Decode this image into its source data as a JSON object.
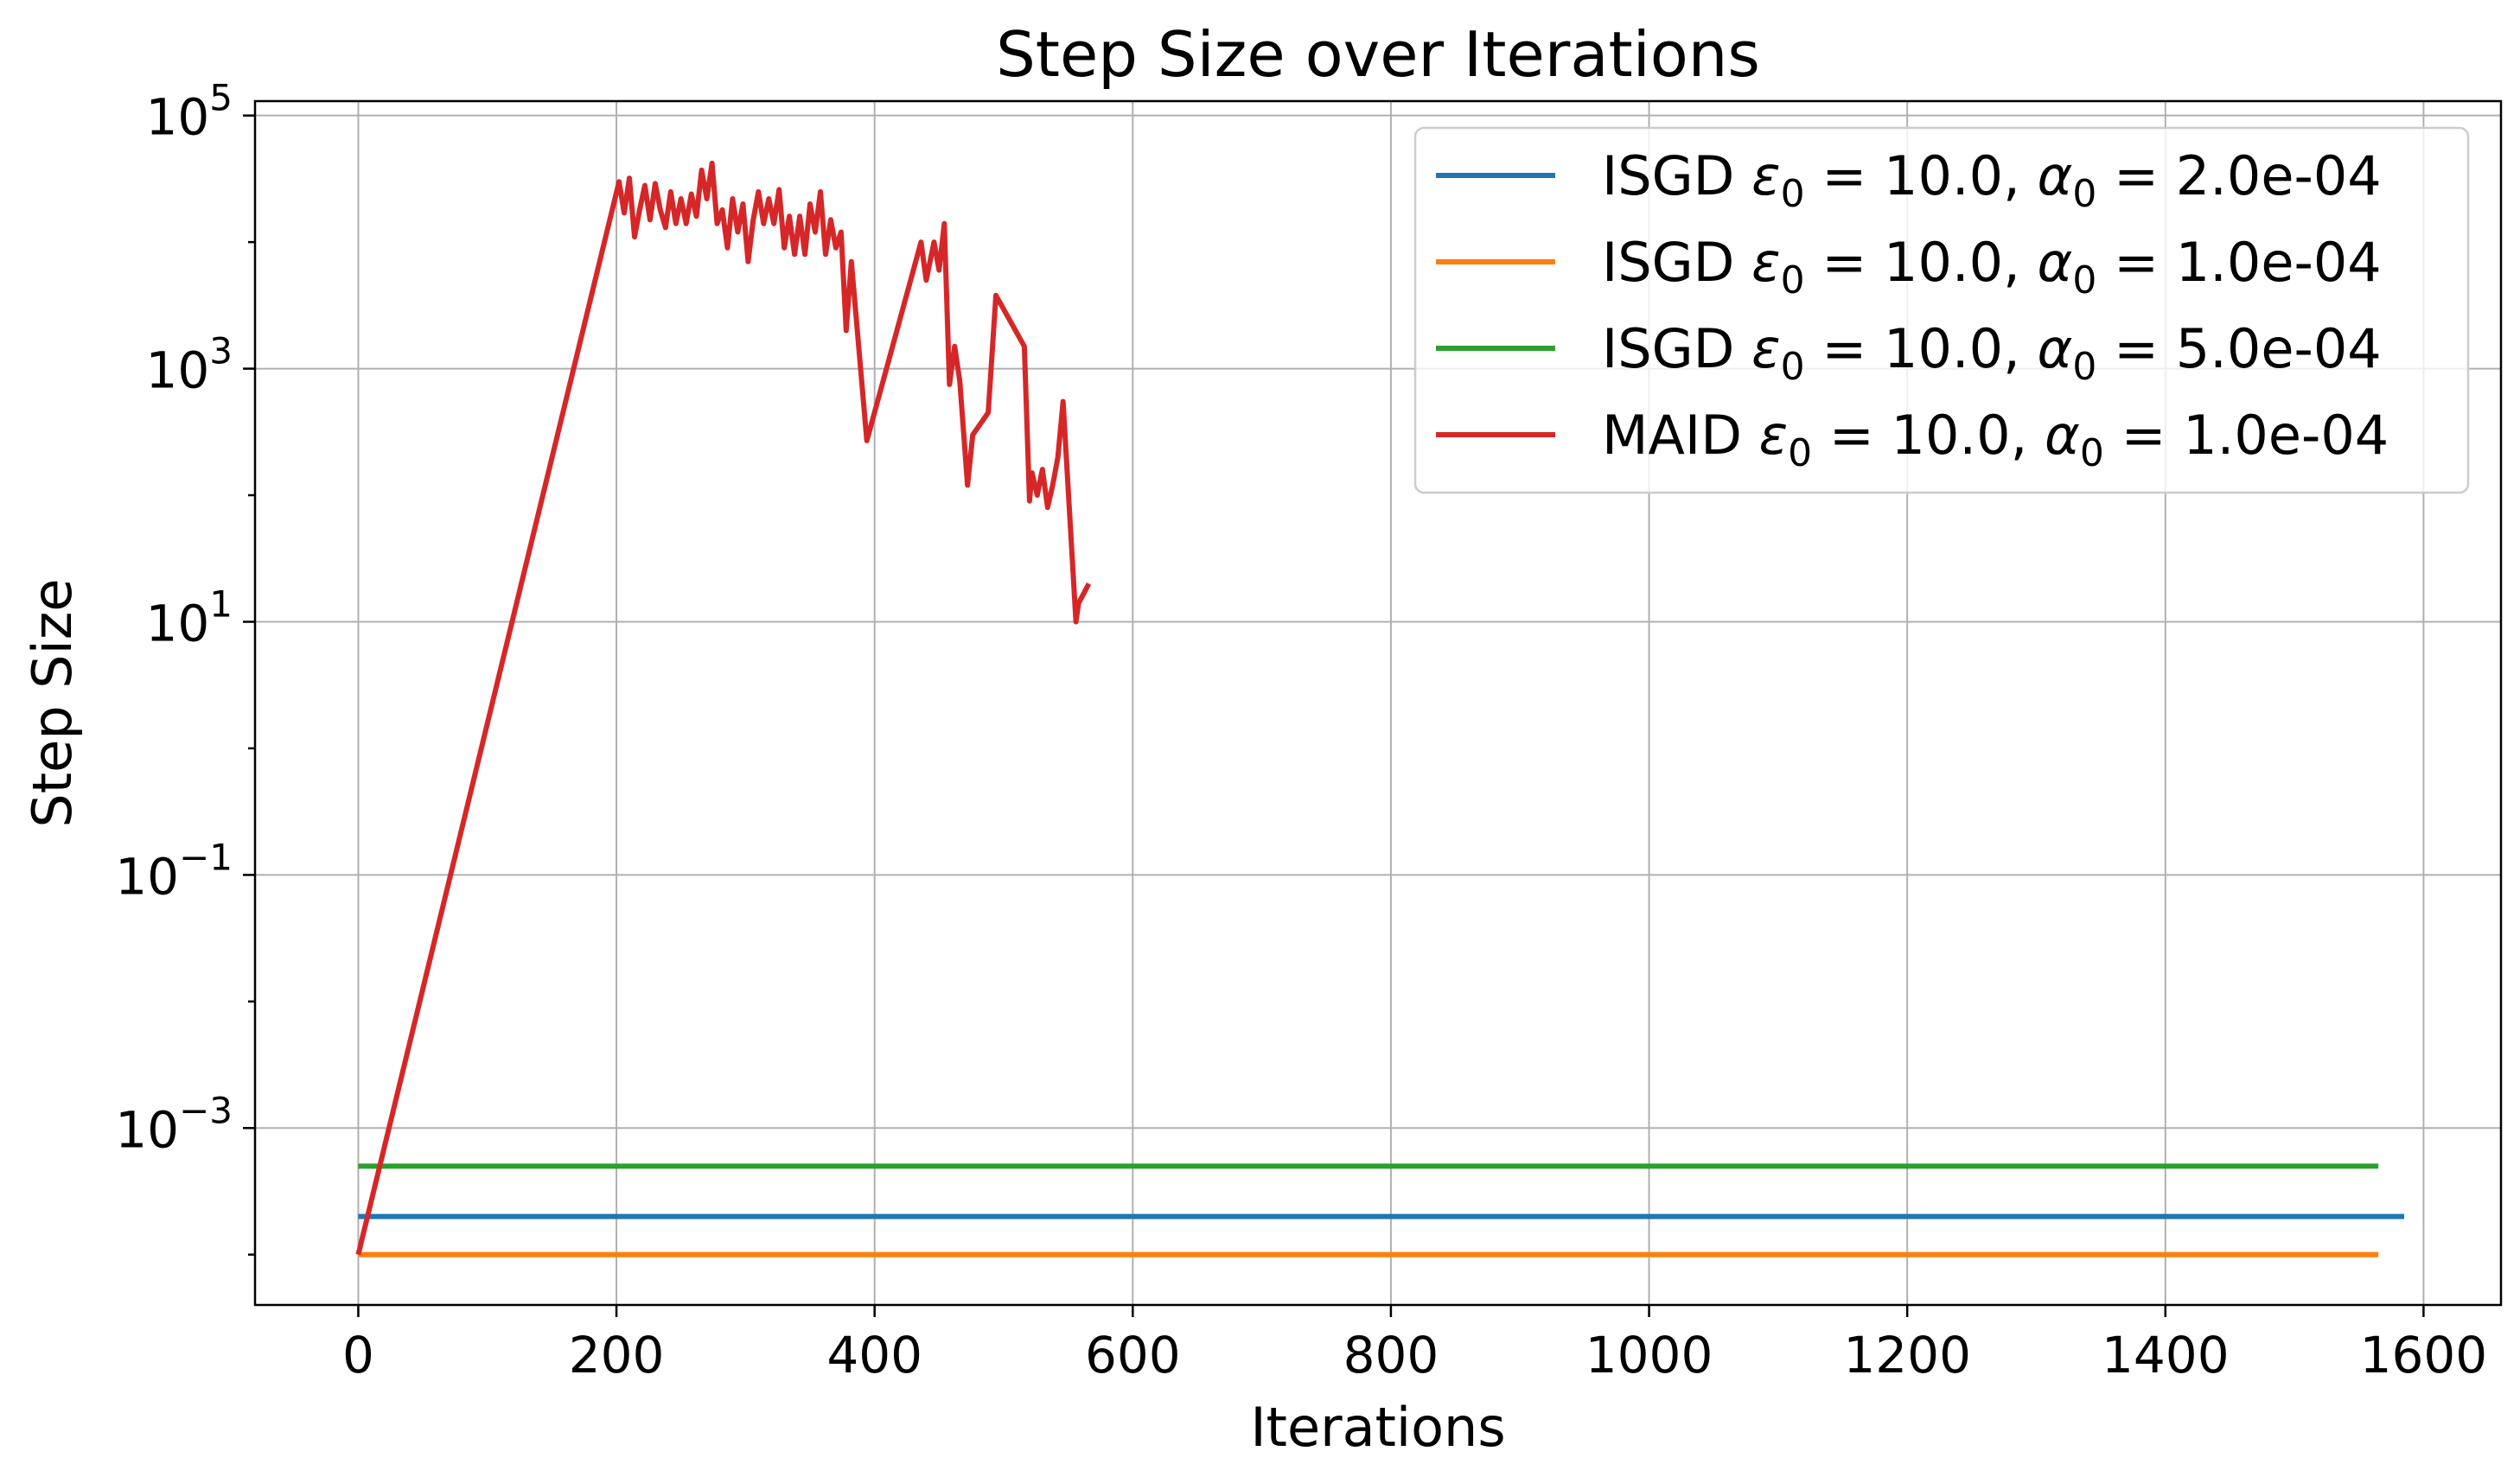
{
  "chart_data": {
    "type": "line",
    "title": "Step Size over Iterations",
    "xlabel": "Iterations",
    "ylabel": "Step Size",
    "xlim": [
      -80,
      1660
    ],
    "ylim": [
      4e-05,
      130000
    ],
    "yscale": "log",
    "grid": true,
    "legend_position": "top-right",
    "xticks": [
      0,
      200,
      400,
      600,
      800,
      1000,
      1200,
      1400,
      1600
    ],
    "yticks": [
      {
        "value": 100000,
        "base": "10",
        "exp": "5"
      },
      {
        "value": 1000,
        "base": "10",
        "exp": "3"
      },
      {
        "value": 10,
        "base": "10",
        "exp": "1"
      },
      {
        "value": 0.1,
        "base": "10",
        "exp": "−1"
      },
      {
        "value": 0.001,
        "base": "10",
        "exp": "−3"
      }
    ],
    "series": [
      {
        "name": "ISGD ε0 = 10.0, α0 = 2.0e-04",
        "label": {
          "prefix": "ISGD ",
          "eps": "ε",
          "eps_sub": "0",
          "mid": " = 10.0, ",
          "alpha": "α",
          "alpha_sub": "0",
          "suffix": " = 2.0e-04"
        },
        "color": "#1f77b4",
        "x": [
          0,
          1585
        ],
        "y": [
          0.0002,
          0.0002
        ]
      },
      {
        "name": "ISGD ε0 = 10.0, α0 = 1.0e-04",
        "label": {
          "prefix": "ISGD ",
          "eps": "ε",
          "eps_sub": "0",
          "mid": " = 10.0, ",
          "alpha": "α",
          "alpha_sub": "0",
          "suffix": " = 1.0e-04"
        },
        "color": "#ff7f0e",
        "x": [
          0,
          1565
        ],
        "y": [
          0.0001,
          0.0001
        ]
      },
      {
        "name": "ISGD ε0 = 10.0, α0 = 5.0e-04",
        "label": {
          "prefix": "ISGD ",
          "eps": "ε",
          "eps_sub": "0",
          "mid": " = 10.0, ",
          "alpha": "α",
          "alpha_sub": "0",
          "suffix": " = 5.0e-04"
        },
        "color": "#2ca02c",
        "x": [
          0,
          1565
        ],
        "y": [
          0.0005,
          0.0005
        ]
      },
      {
        "name": "MAID ε0 = 10.0, α0 = 1.0e-04",
        "label": {
          "prefix": "MAID ",
          "eps": "ε",
          "eps_sub": "0",
          "mid": " = 10.0, ",
          "alpha": "α",
          "alpha_sub": "0",
          "suffix": " = 1.0e-04"
        },
        "color": "#d62728",
        "x": [
          0,
          202,
          206,
          210,
          214,
          218,
          222,
          226,
          230,
          234,
          238,
          242,
          246,
          250,
          254,
          258,
          262,
          266,
          270,
          274,
          278,
          282,
          286,
          290,
          294,
          298,
          302,
          306,
          310,
          314,
          318,
          322,
          326,
          330,
          334,
          338,
          342,
          346,
          350,
          354,
          358,
          362,
          366,
          370,
          374,
          378,
          382,
          394,
          436,
          440,
          446,
          450,
          454,
          458,
          462,
          466,
          472,
          476,
          488,
          494,
          516,
          520,
          522,
          526,
          530,
          534,
          538,
          542,
          546,
          556,
          558,
          566
        ],
        "y": [
          0.0001,
          30000,
          17000,
          32000,
          11000,
          18000,
          28000,
          15000,
          29000,
          18000,
          13000,
          25000,
          14000,
          22000,
          14000,
          24000,
          16000,
          37000,
          22000,
          42000,
          14000,
          18000,
          9000,
          22000,
          12000,
          20000,
          7000,
          15000,
          25000,
          14000,
          22000,
          14000,
          26000,
          9000,
          16000,
          8000,
          16000,
          8000,
          20000,
          12000,
          25000,
          8000,
          15000,
          9000,
          12000,
          2000,
          7000,
          270,
          10000,
          5000,
          10000,
          6000,
          14000,
          750,
          1500,
          800,
          120,
          300,
          450,
          3800,
          1500,
          90,
          150,
          100,
          160,
          80,
          120,
          200,
          550,
          10,
          14,
          20
        ]
      }
    ]
  }
}
